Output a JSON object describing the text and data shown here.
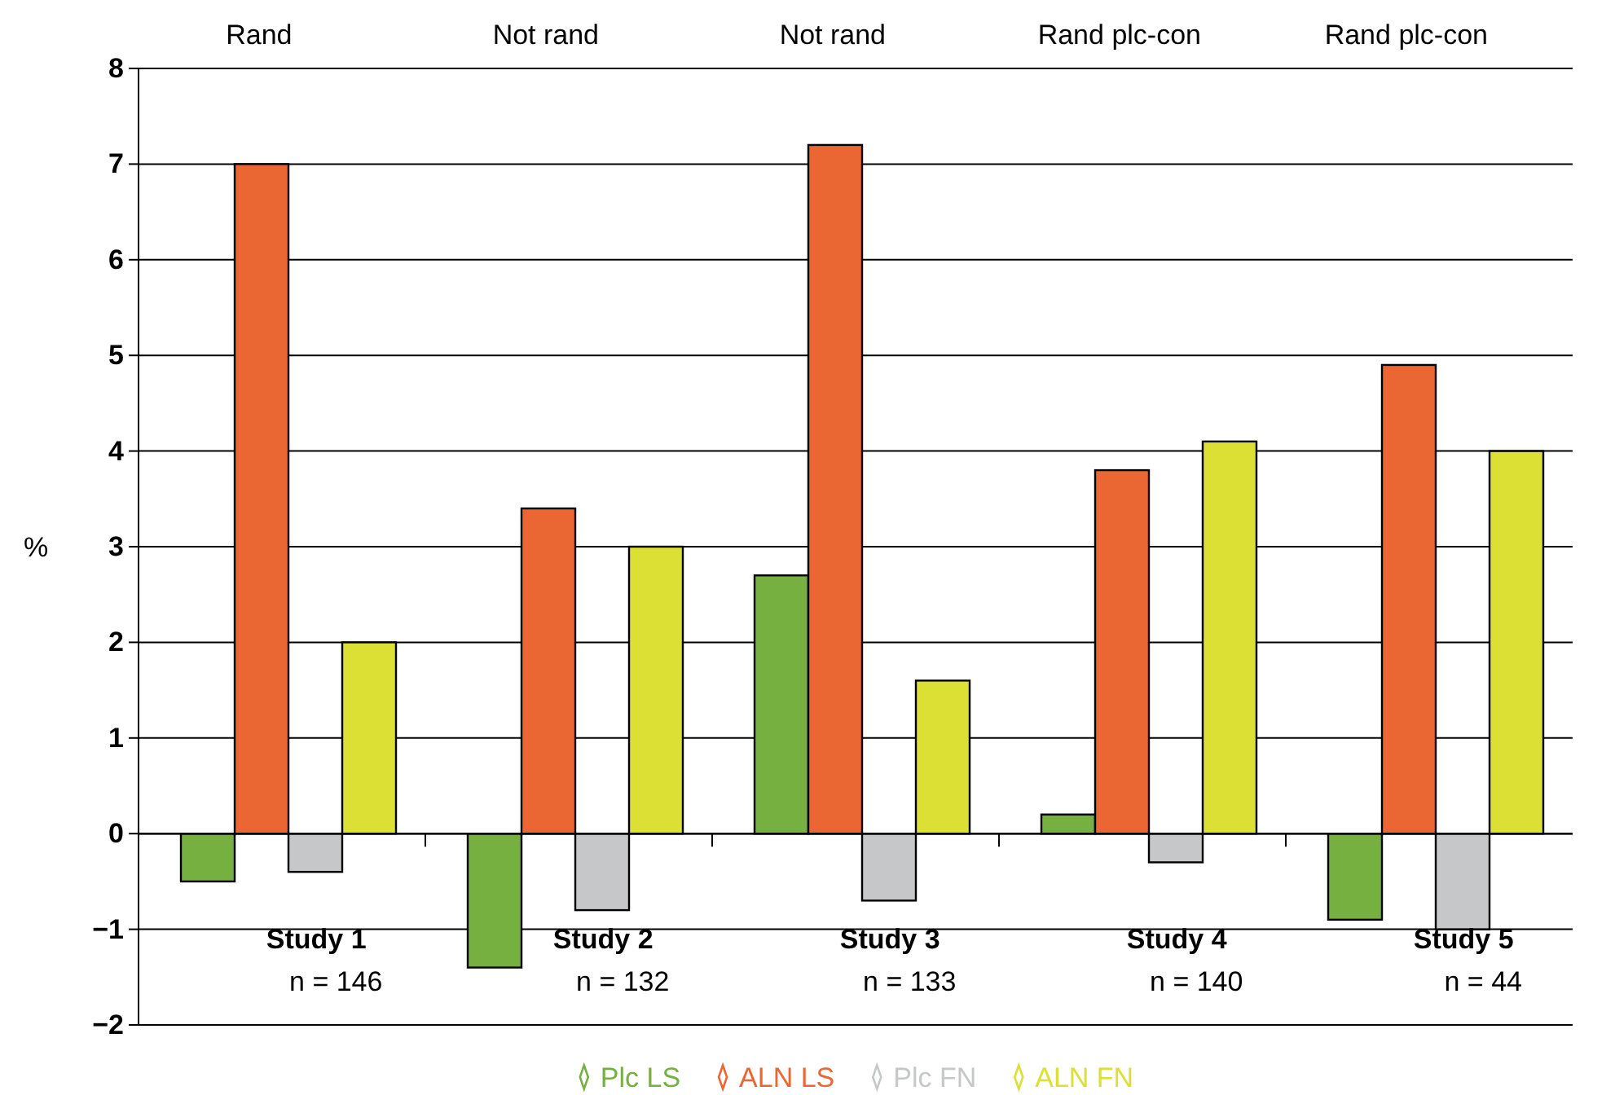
{
  "chart_data": {
    "type": "bar",
    "ylabel": "%",
    "categories": [
      "Study 1\nn = 146",
      "Study 2\nn = 132",
      "Study 3\nn = 133",
      "Study 4\nn = 140",
      "Study 5\nn = 44"
    ],
    "series": [
      {
        "name": "Plc LS",
        "color": "#76b041",
        "values": [
          -0.5,
          -1.4,
          2.7,
          0.2,
          -0.9
        ]
      },
      {
        "name": "ALN LS",
        "color": "#ea6632",
        "values": [
          7.0,
          3.4,
          7.2,
          3.8,
          4.9
        ]
      },
      {
        "name": "Plc FN",
        "color": "#c6c7c9",
        "values": [
          -0.4,
          -0.8,
          -0.7,
          -0.3,
          -1.0
        ]
      },
      {
        "name": "ALN FN",
        "color": "#dde034",
        "values": [
          2.0,
          3.0,
          1.6,
          4.1,
          4.0
        ]
      }
    ],
    "ylim": [
      -2,
      8
    ],
    "yticks": [
      {
        "value": -2,
        "label": "−2"
      },
      {
        "value": -1,
        "label": "−1"
      },
      0,
      1,
      2,
      3,
      4,
      5,
      6,
      7,
      8
    ],
    "annotations": [
      "Rand",
      "Not rand",
      "Not rand",
      "Rand plc-con",
      "Rand plc-con"
    ],
    "grid": "y",
    "legend": "bottom",
    "marker": "diamond"
  }
}
